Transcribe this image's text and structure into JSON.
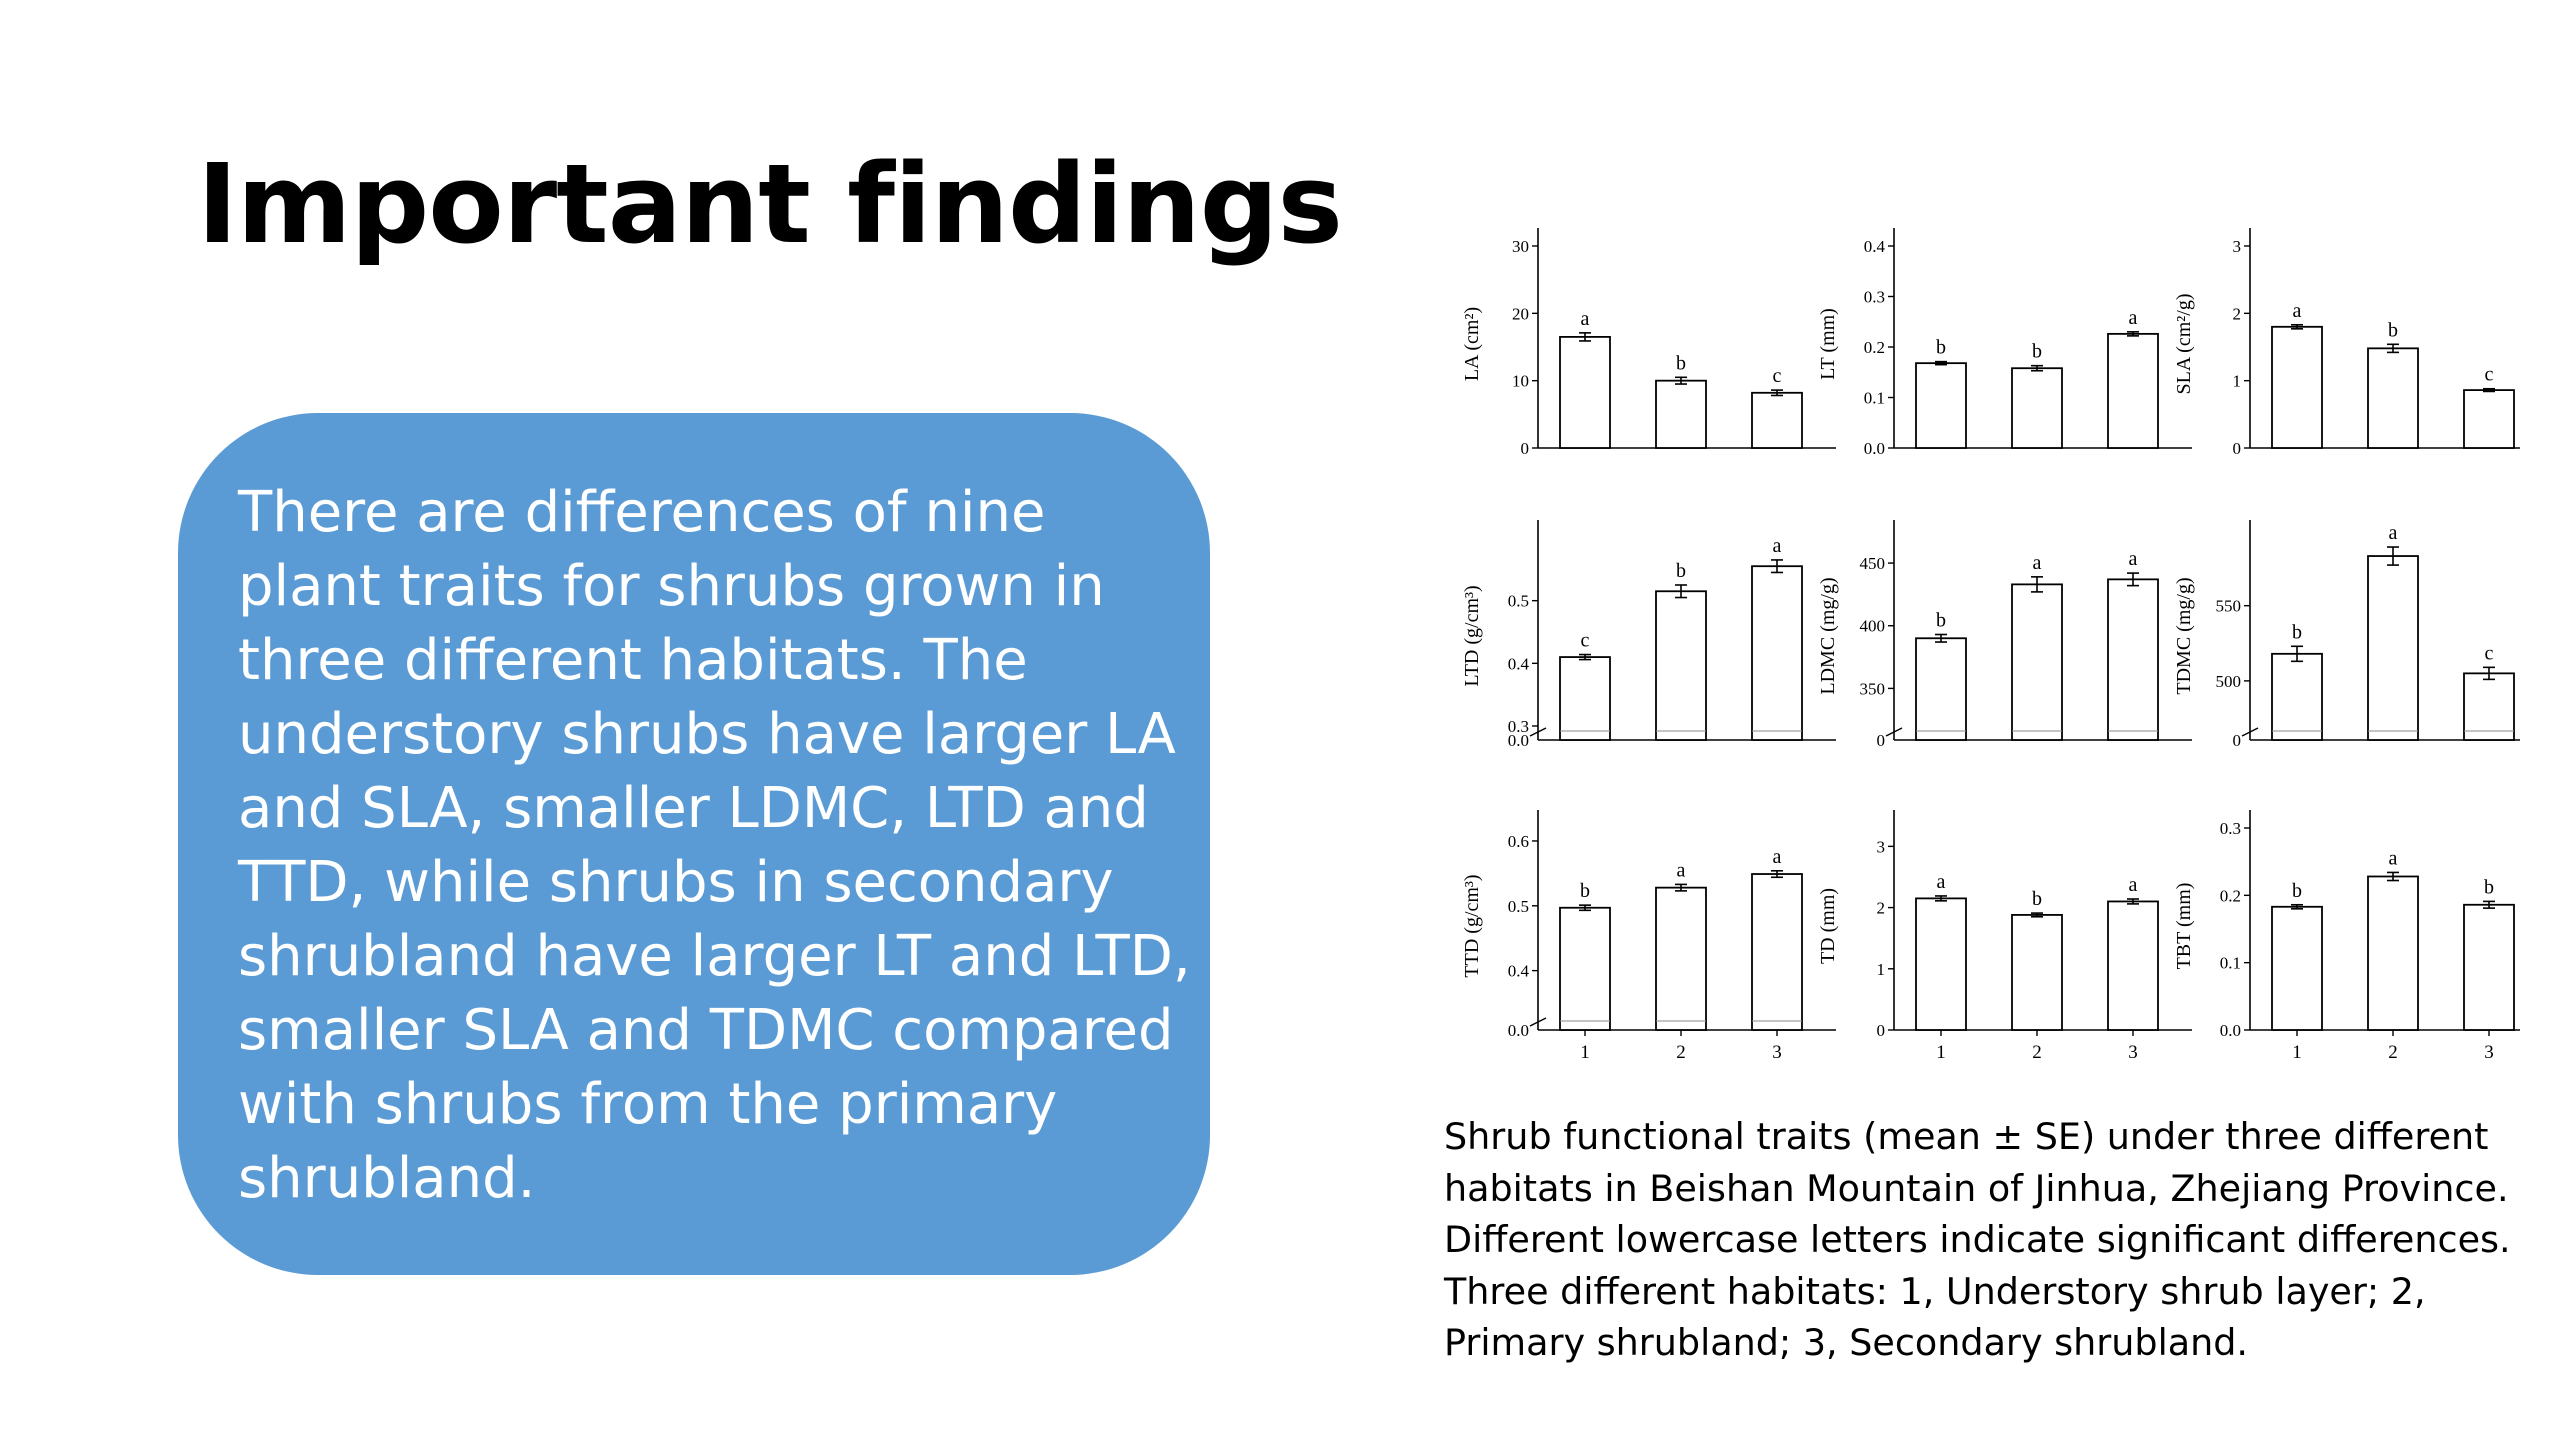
{
  "slide": {
    "title": "Important findings",
    "panel_text": "There are differences of nine plant traits for shrubs grown in three different habitats. The understory shrubs have larger LA and SLA, smaller LDMC, LTD and TTD, while shrubs in secondary shrubland have larger LT and LTD, smaller SLA and TDMC compared with shrubs from the primary shrubland.",
    "panel_color": "#5b9bd5",
    "caption": "Shrub functional traits (mean ± SE) under three different habitats in Beishan Mountain of Jinhua, Zhejiang Province. Different lowercase letters indicate significant differences. Three different habitats: 1, Understory shrub layer; 2, Primary shrubland; 3, Secondary shrubland."
  },
  "chart_data": [
    {
      "type": "bar",
      "ylabel": "LA (cm²)",
      "categories": [
        "1",
        "2",
        "3"
      ],
      "values": [
        16.5,
        10,
        8.2
      ],
      "se": [
        0.6,
        0.5,
        0.4
      ],
      "letters": [
        "a",
        "b",
        "c"
      ],
      "ylim": [
        0,
        30
      ],
      "yticks": [
        0,
        10,
        20,
        30
      ],
      "break": false
    },
    {
      "type": "bar",
      "ylabel": "LT (mm)",
      "categories": [
        "1",
        "2",
        "3"
      ],
      "values": [
        0.168,
        0.158,
        0.226
      ],
      "se": [
        0.003,
        0.005,
        0.004
      ],
      "letters": [
        "b",
        "b",
        "a"
      ],
      "ylim": [
        0,
        0.4
      ],
      "yticks": [
        "0.0",
        "0.1",
        "0.2",
        "0.3",
        "0.4"
      ],
      "break": false
    },
    {
      "type": "bar",
      "ylabel": "SLA (cm²/g)",
      "categories": [
        "1",
        "2",
        "3"
      ],
      "values": [
        1.8,
        1.48,
        0.86
      ],
      "se": [
        0.03,
        0.06,
        0.02
      ],
      "letters": [
        "a",
        "b",
        "c"
      ],
      "ylim": [
        0,
        3
      ],
      "yticks": [
        0,
        1,
        2,
        3
      ],
      "break": false
    },
    {
      "type": "bar",
      "ylabel": "LTD (g/cm³)",
      "categories": [
        "1",
        "2",
        "3"
      ],
      "values": [
        0.41,
        0.515,
        0.555
      ],
      "se": [
        0.004,
        0.01,
        0.01
      ],
      "letters": [
        "c",
        "b",
        "a"
      ],
      "ylim": [
        0.3,
        0.6
      ],
      "yticks": [
        "0.3",
        "0.4",
        "0.5"
      ],
      "bottom_label": "0.0",
      "break": true
    },
    {
      "type": "bar",
      "ylabel": "LDMC (mg/g)",
      "categories": [
        "1",
        "2",
        "3"
      ],
      "values": [
        390,
        433,
        437
      ],
      "se": [
        3,
        6,
        5
      ],
      "letters": [
        "b",
        "a",
        "a"
      ],
      "ylim": [
        320,
        470
      ],
      "yticks": [
        350,
        400,
        450
      ],
      "bottom_label": "0",
      "break": true
    },
    {
      "type": "bar",
      "ylabel": "TDMC (mg/g)",
      "categories": [
        "1",
        "2",
        "3"
      ],
      "values": [
        518,
        583,
        505
      ],
      "se": [
        5,
        6,
        4
      ],
      "letters": [
        "b",
        "a",
        "c"
      ],
      "ylim": [
        470,
        595
      ],
      "yticks": [
        500,
        550
      ],
      "bottom_label": "0",
      "break": true
    },
    {
      "type": "bar",
      "ylabel": "TTD (g/cm³)",
      "categories": [
        "1",
        "2",
        "3"
      ],
      "values": [
        0.497,
        0.528,
        0.549
      ],
      "se": [
        0.004,
        0.005,
        0.005
      ],
      "letters": [
        "b",
        "a",
        "a"
      ],
      "ylim": [
        0.33,
        0.62
      ],
      "yticks": [
        "0.4",
        "0.5",
        "0.6"
      ],
      "bottom_label": "0.0",
      "break": true
    },
    {
      "type": "bar",
      "ylabel": "TD (mm)",
      "categories": [
        "1",
        "2",
        "3"
      ],
      "values": [
        2.15,
        1.88,
        2.1
      ],
      "se": [
        0.04,
        0.03,
        0.04
      ],
      "letters": [
        "a",
        "b",
        "a"
      ],
      "ylim": [
        0,
        3.3
      ],
      "yticks": [
        0,
        1,
        2,
        3
      ],
      "break": false
    },
    {
      "type": "bar",
      "ylabel": "TBT (mm)",
      "categories": [
        "1",
        "2",
        "3"
      ],
      "values": [
        0.183,
        0.228,
        0.186
      ],
      "se": [
        0.003,
        0.006,
        0.005
      ],
      "letters": [
        "b",
        "a",
        "b"
      ],
      "ylim": [
        0,
        0.3
      ],
      "yticks": [
        "0.0",
        "0.1",
        "0.2",
        "0.3"
      ],
      "break": false
    }
  ]
}
